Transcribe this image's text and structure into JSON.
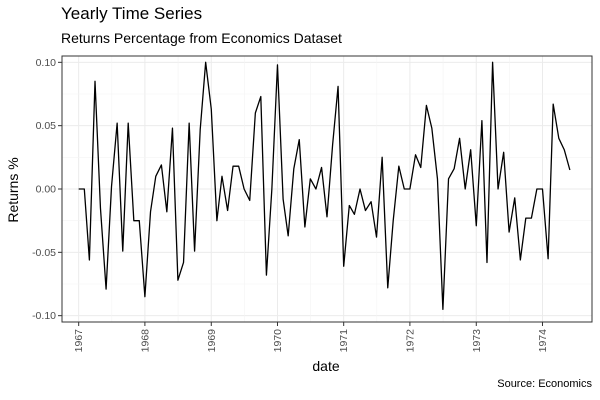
{
  "chart_data": {
    "type": "line",
    "title": "Yearly Time Series",
    "subtitle": "Returns Percentage from Economics Dataset",
    "caption": "Source: Economics",
    "xlabel": "date",
    "ylabel": "Returns %",
    "ylim": [
      -0.105,
      0.105
    ],
    "xlim": [
      "1966-10-01",
      "1974-10-01"
    ],
    "grid": true,
    "y_ticks": [
      -0.1,
      -0.05,
      0.0,
      0.05,
      0.1
    ],
    "y_tick_labels": [
      "-0.10",
      "-0.05",
      "0.00",
      "0.05",
      "0.10"
    ],
    "x_ticks": [
      "1967-01-01",
      "1968-01-01",
      "1969-01-01",
      "1970-01-01",
      "1971-01-01",
      "1972-01-01",
      "1973-01-01",
      "1974-01-01"
    ],
    "x_tick_labels": [
      "1967",
      "1968",
      "1969",
      "1970",
      "1971",
      "1972",
      "1973",
      "1974"
    ],
    "color": "#000000",
    "series": [
      {
        "x": [
          "1967-01",
          "1967-02",
          "1967-03",
          "1967-04",
          "1967-05",
          "1967-06",
          "1967-07",
          "1967-08",
          "1967-09",
          "1967-10",
          "1967-11",
          "1967-12",
          "1968-01",
          "1968-02",
          "1968-03",
          "1968-04",
          "1968-05",
          "1968-06",
          "1968-07",
          "1968-08",
          "1968-09",
          "1968-10",
          "1968-11",
          "1968-12",
          "1969-01",
          "1969-02",
          "1969-03",
          "1969-04",
          "1969-05",
          "1969-06",
          "1969-07",
          "1969-08",
          "1969-09",
          "1969-10",
          "1969-11",
          "1969-12",
          "1970-01",
          "1970-02",
          "1970-03",
          "1970-04",
          "1970-05",
          "1970-06",
          "1970-07",
          "1970-08",
          "1970-09",
          "1970-10",
          "1970-11",
          "1970-12",
          "1971-01",
          "1971-02",
          "1971-03",
          "1971-04",
          "1971-05",
          "1971-06",
          "1971-07",
          "1971-08",
          "1971-09",
          "1971-10",
          "1971-11",
          "1971-12",
          "1972-01",
          "1972-02",
          "1972-03",
          "1972-04",
          "1972-05",
          "1972-06",
          "1972-07",
          "1972-08",
          "1972-09",
          "1972-10",
          "1972-11",
          "1972-12",
          "1973-01",
          "1973-02",
          "1973-03",
          "1973-04",
          "1973-05",
          "1973-06",
          "1973-07",
          "1973-08",
          "1973-09",
          "1973-10",
          "1973-11",
          "1973-12",
          "1974-01",
          "1974-02",
          "1974-03",
          "1974-04",
          "1974-05",
          "1974-06"
        ],
        "values": [
          0.0,
          0.0,
          -0.056,
          0.085,
          -0.015,
          -0.079,
          0.002,
          0.052,
          -0.049,
          0.052,
          -0.025,
          -0.025,
          -0.085,
          -0.018,
          0.01,
          0.019,
          -0.018,
          0.048,
          -0.072,
          -0.058,
          0.052,
          -0.049,
          0.047,
          0.1,
          0.063,
          -0.025,
          0.01,
          -0.017,
          0.018,
          0.018,
          0.0,
          -0.009,
          0.06,
          0.073,
          -0.068,
          0.0,
          0.098,
          -0.008,
          -0.037,
          0.016,
          0.039,
          -0.03,
          0.008,
          0.0,
          0.017,
          -0.022,
          0.035,
          0.081,
          -0.061,
          -0.013,
          -0.02,
          0.0,
          -0.017,
          -0.01,
          -0.038,
          0.025,
          -0.078,
          -0.025,
          0.018,
          0.0,
          0.0,
          0.027,
          0.017,
          0.066,
          0.048,
          0.008,
          -0.095,
          0.008,
          0.016,
          0.04,
          0.0,
          0.031,
          -0.029,
          0.054,
          -0.058,
          0.1,
          0.0,
          0.029,
          -0.034,
          -0.007,
          -0.056,
          -0.023,
          -0.023,
          0.0,
          0.0,
          -0.055,
          0.067,
          0.04,
          0.031,
          0.015
        ]
      }
    ]
  }
}
